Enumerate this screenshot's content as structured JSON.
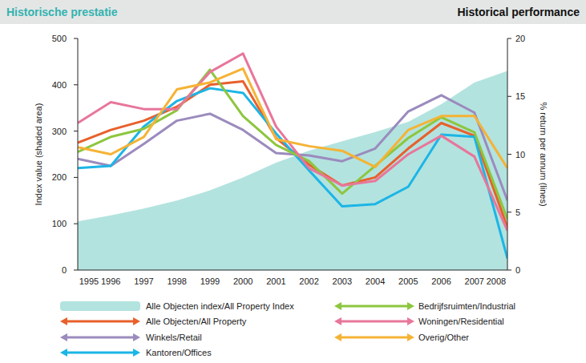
{
  "chart_data": {
    "type": "line",
    "title": "Historische prestatie",
    "subtitle": "Historical performance",
    "ylabel": "Index value (shaded area)",
    "y2label": "% return per annum (lines)",
    "categories": [
      "1995",
      "1996",
      "1997",
      "1998",
      "1999",
      "2000",
      "2001",
      "2002",
      "2003",
      "2004",
      "2005",
      "2006",
      "2007",
      "2008"
    ],
    "ylim": [
      0,
      500
    ],
    "yticks": [
      0,
      100,
      200,
      300,
      400,
      500
    ],
    "y2lim": [
      0,
      20
    ],
    "y2ticks": [
      0,
      5,
      10,
      15,
      20
    ],
    "legend": "bottom",
    "series": [
      {
        "name": "Alle Objecten index/All Property Index",
        "type": "area",
        "color": "#b3e3df",
        "values": [
          105,
          118,
          133,
          150,
          172,
          200,
          232,
          258,
          278,
          298,
          320,
          358,
          405,
          430
        ]
      },
      {
        "name": "Alle Objecten/All Property",
        "type": "line",
        "axis": "y2",
        "color": "#e8602c",
        "values": [
          11.0,
          12.1,
          12.9,
          14.1,
          16.0,
          16.3,
          11.4,
          9.1,
          7.3,
          8.0,
          10.5,
          12.7,
          11.6,
          3.7
        ]
      },
      {
        "name": "Winkels/Retail",
        "type": "line",
        "axis": "y2",
        "color": "#9b8bbd",
        "values": [
          9.6,
          9.0,
          10.9,
          12.9,
          13.5,
          12.1,
          10.1,
          9.9,
          9.4,
          10.5,
          13.7,
          15.1,
          13.6,
          6.0
        ]
      },
      {
        "name": "Kantoren/Offices",
        "type": "line",
        "axis": "y2",
        "color": "#1cb5e6",
        "values": [
          8.8,
          9.0,
          12.4,
          14.6,
          15.7,
          15.3,
          11.8,
          8.6,
          5.5,
          5.7,
          7.2,
          11.7,
          11.5,
          1.0
        ]
      },
      {
        "name": "Bedrijfsruimten/Industrial",
        "type": "line",
        "axis": "y2",
        "color": "#8dc63f",
        "values": [
          10.2,
          11.5,
          12.2,
          13.8,
          17.3,
          13.3,
          10.8,
          9.4,
          6.6,
          9.0,
          11.4,
          13.2,
          11.9,
          4.4
        ]
      },
      {
        "name": "Woningen/Residential",
        "type": "line",
        "axis": "y2",
        "color": "#e8769a",
        "values": [
          12.7,
          14.5,
          13.9,
          13.9,
          17.1,
          18.7,
          12.4,
          8.8,
          7.3,
          7.7,
          10.0,
          11.6,
          9.8,
          3.4
        ]
      },
      {
        "name": "Overig/Other",
        "type": "line",
        "axis": "y2",
        "color": "#f5b335",
        "values": [
          10.6,
          10.0,
          11.5,
          15.6,
          16.2,
          17.4,
          11.3,
          10.7,
          10.3,
          8.9,
          12.1,
          13.3,
          13.3,
          8.8
        ]
      }
    ]
  }
}
